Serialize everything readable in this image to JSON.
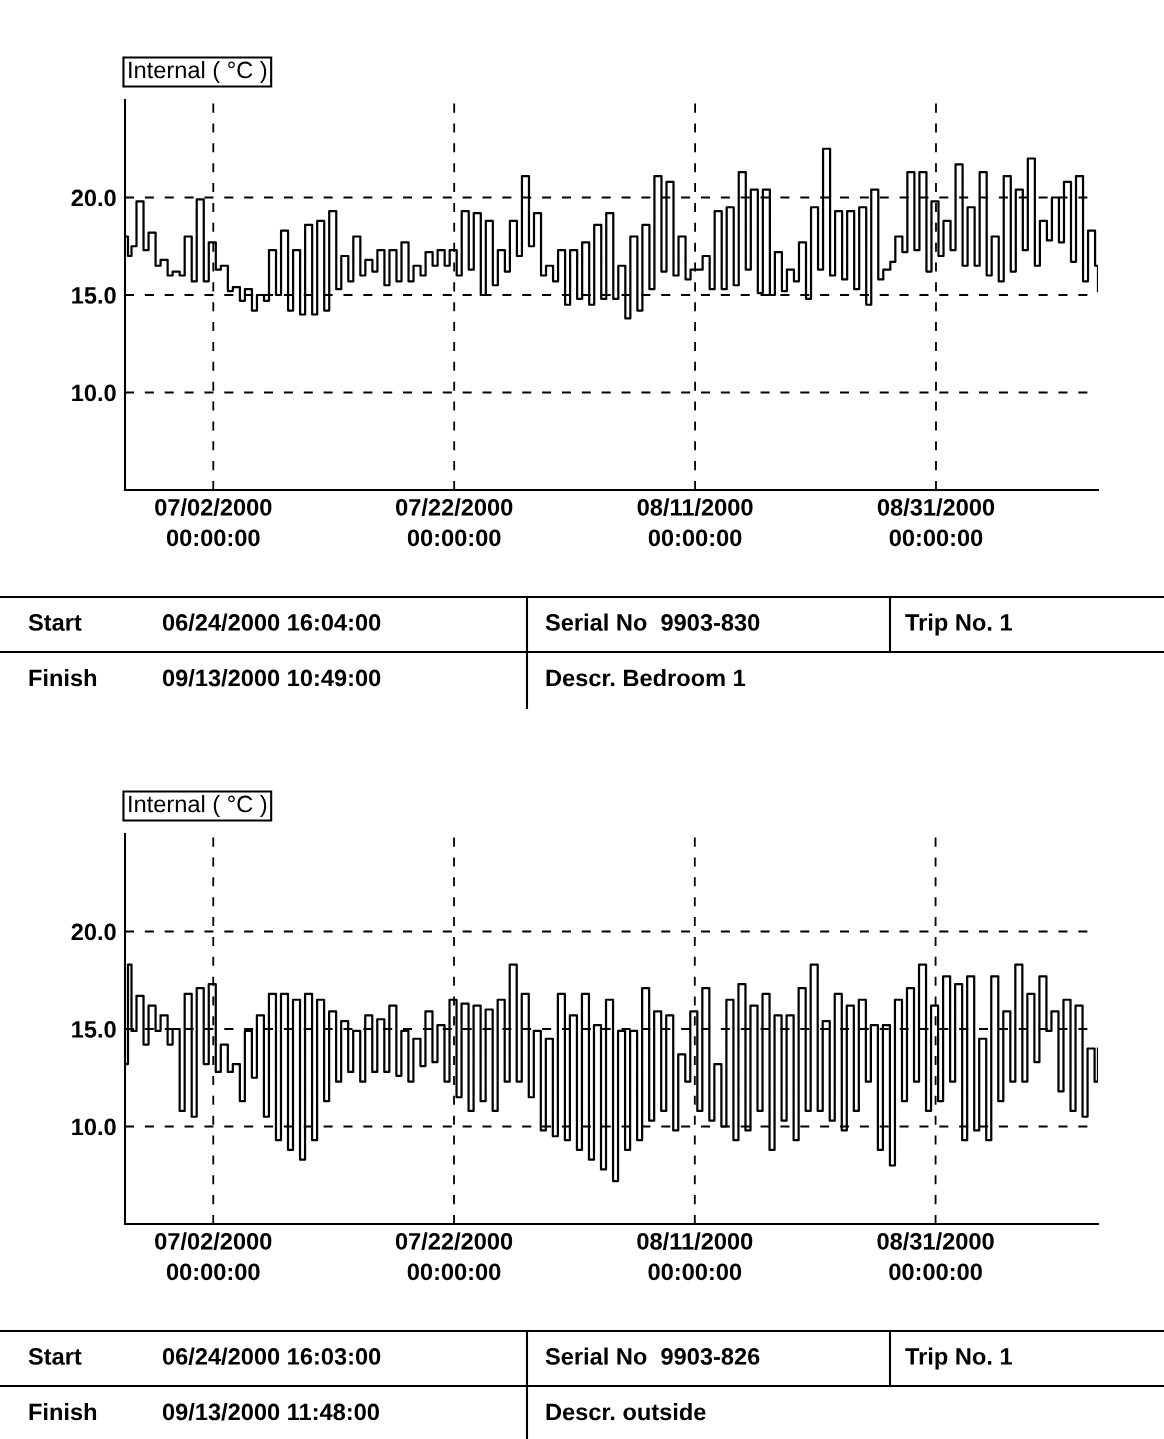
{
  "chart_data": [
    {
      "type": "step",
      "ylabel": "Internal ( °C )",
      "ylim": [
        5,
        25
      ],
      "yticks": [
        {
          "value": 10,
          "label": "10.0"
        },
        {
          "value": 15,
          "label": "15.0"
        },
        {
          "value": 20,
          "label": "20.0"
        }
      ],
      "xlim": [
        "2000-06-24T16:04",
        "2000-09-13T10:49"
      ],
      "xticks": [
        {
          "value": "2000-07-02",
          "label": "07/02/2000\n00:00:00"
        },
        {
          "value": "2000-07-22",
          "label": "07/22/2000\n00:00:00"
        },
        {
          "value": "2000-08-11",
          "label": "08/11/2000\n00:00:00"
        },
        {
          "value": "2000-08-31",
          "label": "08/31/2000\n00:00:00"
        }
      ],
      "grid": true,
      "line_style": "solid",
      "marker": "none",
      "x": [
        "2000-06-24T16:04",
        "2000-06-24T22:00",
        "2000-06-25T05:00",
        "2000-06-25T15:00",
        "2000-06-26T05:00",
        "2000-06-26T15:00",
        "2000-06-27T05:00",
        "2000-06-27T15:00",
        "2000-06-28T05:00",
        "2000-06-28T15:00",
        "2000-06-29T05:00",
        "2000-06-29T15:00",
        "2000-06-30T05:00",
        "2000-06-30T15:00",
        "2000-07-01T05:00",
        "2000-07-01T15:00",
        "2000-07-02T05:00",
        "2000-07-02T15:00",
        "2000-07-03T05:00",
        "2000-07-03T15:00",
        "2000-07-04T05:00",
        "2000-07-04T15:00",
        "2000-07-05T05:00",
        "2000-07-05T15:00",
        "2000-07-06T05:00",
        "2000-07-06T15:00",
        "2000-07-07T05:00",
        "2000-07-07T15:00",
        "2000-07-08T05:00",
        "2000-07-08T15:00",
        "2000-07-09T05:00",
        "2000-07-09T15:00",
        "2000-07-10T05:00",
        "2000-07-10T15:00",
        "2000-07-11T05:00",
        "2000-07-11T15:00",
        "2000-07-12T05:00",
        "2000-07-12T15:00",
        "2000-07-13T05:00",
        "2000-07-13T15:00",
        "2000-07-14T05:00",
        "2000-07-14T15:00",
        "2000-07-15T05:00",
        "2000-07-15T15:00",
        "2000-07-16T05:00",
        "2000-07-16T15:00",
        "2000-07-17T05:00",
        "2000-07-17T15:00",
        "2000-07-18T05:00",
        "2000-07-18T15:00",
        "2000-07-19T05:00",
        "2000-07-19T15:00",
        "2000-07-20T05:00",
        "2000-07-20T15:00",
        "2000-07-21T05:00",
        "2000-07-21T15:00",
        "2000-07-22T05:00",
        "2000-07-22T15:00",
        "2000-07-23T05:00",
        "2000-07-23T15:00",
        "2000-07-24T05:00",
        "2000-07-24T15:00",
        "2000-07-25T05:00",
        "2000-07-25T15:00",
        "2000-07-26T05:00",
        "2000-07-26T15:00",
        "2000-07-27T05:00",
        "2000-07-27T15:00",
        "2000-07-28T05:00",
        "2000-07-28T15:00",
        "2000-07-29T05:00",
        "2000-07-29T15:00",
        "2000-07-30T05:00",
        "2000-07-30T15:00",
        "2000-07-31T05:00",
        "2000-07-31T15:00",
        "2000-08-01T05:00",
        "2000-08-01T15:00",
        "2000-08-02T05:00",
        "2000-08-02T15:00",
        "2000-08-03T05:00",
        "2000-08-03T15:00",
        "2000-08-04T05:00",
        "2000-08-04T15:00",
        "2000-08-05T05:00",
        "2000-08-05T15:00",
        "2000-08-06T05:00",
        "2000-08-06T15:00",
        "2000-08-07T05:00",
        "2000-08-07T15:00",
        "2000-08-08T05:00",
        "2000-08-08T15:00",
        "2000-08-09T05:00",
        "2000-08-09T15:00",
        "2000-08-10T05:00",
        "2000-08-10T15:00",
        "2000-08-11T05:00",
        "2000-08-11T15:00",
        "2000-08-12T05:00",
        "2000-08-12T15:00",
        "2000-08-13T05:00",
        "2000-08-13T15:00",
        "2000-08-14T05:00",
        "2000-08-14T15:00",
        "2000-08-15T05:00",
        "2000-08-15T15:00",
        "2000-08-16T05:00",
        "2000-08-16T15:00",
        "2000-08-17T05:00",
        "2000-08-17T15:00",
        "2000-08-18T05:00",
        "2000-08-18T15:00",
        "2000-08-19T05:00",
        "2000-08-19T15:00",
        "2000-08-20T05:00",
        "2000-08-20T15:00",
        "2000-08-21T05:00",
        "2000-08-21T15:00",
        "2000-08-22T05:00",
        "2000-08-22T15:00",
        "2000-08-23T05:00",
        "2000-08-23T15:00",
        "2000-08-24T05:00",
        "2000-08-24T15:00",
        "2000-08-25T05:00",
        "2000-08-25T15:00",
        "2000-08-26T05:00",
        "2000-08-26T15:00",
        "2000-08-27T05:00",
        "2000-08-27T15:00",
        "2000-08-28T05:00",
        "2000-08-28T15:00",
        "2000-08-29T05:00",
        "2000-08-29T15:00",
        "2000-08-30T05:00",
        "2000-08-30T15:00",
        "2000-08-31T05:00",
        "2000-08-31T15:00",
        "2000-09-01T05:00",
        "2000-09-01T15:00",
        "2000-09-02T05:00",
        "2000-09-02T15:00",
        "2000-09-03T05:00",
        "2000-09-03T15:00",
        "2000-09-04T05:00",
        "2000-09-04T15:00",
        "2000-09-05T05:00",
        "2000-09-05T15:00",
        "2000-09-06T05:00",
        "2000-09-06T15:00",
        "2000-09-07T05:00",
        "2000-09-07T15:00",
        "2000-09-08T05:00",
        "2000-09-08T15:00",
        "2000-09-09T05:00",
        "2000-09-09T15:00",
        "2000-09-10T05:00",
        "2000-09-10T15:00",
        "2000-09-11T05:00",
        "2000-09-11T15:00",
        "2000-09-12T05:00",
        "2000-09-12T15:00",
        "2000-09-13T05:00",
        "2000-09-13T10:49"
      ],
      "series": [
        {
          "color": "#000000",
          "values": [
            18.0,
            17.0,
            17.5,
            19.8,
            17.3,
            18.2,
            16.5,
            16.8,
            16.0,
            16.2,
            16.0,
            18.0,
            15.7,
            19.9,
            15.7,
            17.7,
            16.3,
            16.5,
            15.2,
            15.4,
            14.7,
            15.3,
            14.2,
            15.0,
            14.7,
            17.3,
            15.0,
            18.3,
            14.2,
            17.3,
            14.0,
            18.6,
            14.0,
            18.8,
            14.2,
            19.3,
            15.3,
            17.0,
            15.7,
            18.0,
            16.0,
            16.8,
            16.2,
            17.3,
            15.5,
            17.3,
            15.7,
            17.7,
            15.7,
            16.5,
            16.0,
            17.2,
            16.5,
            17.3,
            16.5,
            17.3,
            16.0,
            19.3,
            16.3,
            19.2,
            15.0,
            18.8,
            15.5,
            17.3,
            16.2,
            18.8,
            17.0,
            21.1,
            17.5,
            19.2,
            16.0,
            16.5,
            15.7,
            17.3,
            14.5,
            17.3,
            14.8,
            17.7,
            14.5,
            18.6,
            14.8,
            19.2,
            14.8,
            16.5,
            13.8,
            18.0,
            14.2,
            18.6,
            15.3,
            21.1,
            16.2,
            20.8,
            16.0,
            18.0,
            15.8,
            16.3,
            16.3,
            17.0,
            15.3,
            19.3,
            15.3,
            19.5,
            15.5,
            21.3,
            16.3,
            20.4,
            15.1,
            20.4,
            15.0,
            17.2,
            15.2,
            16.3,
            15.7,
            17.7,
            14.8,
            19.5,
            16.3,
            22.5,
            16.0,
            19.3,
            15.8,
            19.3,
            15.3,
            19.5,
            14.5,
            20.4,
            15.8,
            16.3,
            16.7,
            18.0,
            17.2,
            21.3,
            17.3,
            21.3,
            16.2,
            19.8,
            17.0,
            18.8,
            17.3,
            21.7,
            16.5,
            19.5,
            16.5,
            21.3,
            16.0,
            18.0,
            15.7,
            21.1,
            16.2,
            20.4,
            17.3,
            22.0,
            16.5,
            18.8,
            17.8,
            20.0,
            17.7,
            20.8,
            16.7,
            21.1,
            15.7,
            18.3,
            16.5,
            15.2
          ]
        }
      ],
      "annotations": [
        "Start",
        "06/24/2000 16:04:00",
        "Serial No  9903-830",
        "Trip No. 1",
        "Finish",
        "09/13/2000 10:49:00",
        "Descr. Bedroom 1"
      ]
    },
    {
      "type": "step",
      "ylabel": "Internal ( °C )",
      "ylim": [
        5,
        25
      ],
      "yticks": [
        {
          "value": 10,
          "label": "10.0"
        },
        {
          "value": 15,
          "label": "15.0"
        },
        {
          "value": 20,
          "label": "20.0"
        }
      ],
      "xlim": [
        "2000-06-24T16:03",
        "2000-09-13T11:48"
      ],
      "xticks": [
        {
          "value": "2000-07-02",
          "label": "07/02/2000\n00:00:00"
        },
        {
          "value": "2000-07-22",
          "label": "07/22/2000\n00:00:00"
        },
        {
          "value": "2000-08-11",
          "label": "08/11/2000\n00:00:00"
        },
        {
          "value": "2000-08-31",
          "label": "08/31/2000\n00:00:00"
        }
      ],
      "grid": true,
      "line_style": "solid",
      "marker": "none",
      "x": [
        "2000-06-24T16:03",
        "2000-06-24T22:00",
        "2000-06-25T05:00",
        "2000-06-25T15:00",
        "2000-06-26T05:00",
        "2000-06-26T15:00",
        "2000-06-27T05:00",
        "2000-06-27T15:00",
        "2000-06-28T05:00",
        "2000-06-28T15:00",
        "2000-06-29T05:00",
        "2000-06-29T15:00",
        "2000-06-30T05:00",
        "2000-06-30T15:00",
        "2000-07-01T05:00",
        "2000-07-01T15:00",
        "2000-07-02T05:00",
        "2000-07-02T15:00",
        "2000-07-03T05:00",
        "2000-07-03T15:00",
        "2000-07-04T05:00",
        "2000-07-04T15:00",
        "2000-07-05T05:00",
        "2000-07-05T15:00",
        "2000-07-06T05:00",
        "2000-07-06T15:00",
        "2000-07-07T05:00",
        "2000-07-07T15:00",
        "2000-07-08T05:00",
        "2000-07-08T15:00",
        "2000-07-09T05:00",
        "2000-07-09T15:00",
        "2000-07-10T05:00",
        "2000-07-10T15:00",
        "2000-07-11T05:00",
        "2000-07-11T15:00",
        "2000-07-12T05:00",
        "2000-07-12T15:00",
        "2000-07-13T05:00",
        "2000-07-13T15:00",
        "2000-07-14T05:00",
        "2000-07-14T15:00",
        "2000-07-15T05:00",
        "2000-07-15T15:00",
        "2000-07-16T05:00",
        "2000-07-16T15:00",
        "2000-07-17T05:00",
        "2000-07-17T15:00",
        "2000-07-18T05:00",
        "2000-07-18T15:00",
        "2000-07-19T05:00",
        "2000-07-19T15:00",
        "2000-07-20T05:00",
        "2000-07-20T15:00",
        "2000-07-21T05:00",
        "2000-07-21T15:00",
        "2000-07-22T05:00",
        "2000-07-22T15:00",
        "2000-07-23T05:00",
        "2000-07-23T15:00",
        "2000-07-24T05:00",
        "2000-07-24T15:00",
        "2000-07-25T05:00",
        "2000-07-25T15:00",
        "2000-07-26T05:00",
        "2000-07-26T15:00",
        "2000-07-27T05:00",
        "2000-07-27T15:00",
        "2000-07-28T05:00",
        "2000-07-28T15:00",
        "2000-07-29T05:00",
        "2000-07-29T15:00",
        "2000-07-30T05:00",
        "2000-07-30T15:00",
        "2000-07-31T05:00",
        "2000-07-31T15:00",
        "2000-08-01T05:00",
        "2000-08-01T15:00",
        "2000-08-02T05:00",
        "2000-08-02T15:00",
        "2000-08-03T05:00",
        "2000-08-03T15:00",
        "2000-08-04T05:00",
        "2000-08-04T15:00",
        "2000-08-05T05:00",
        "2000-08-05T15:00",
        "2000-08-06T05:00",
        "2000-08-06T15:00",
        "2000-08-07T05:00",
        "2000-08-07T15:00",
        "2000-08-08T05:00",
        "2000-08-08T15:00",
        "2000-08-09T05:00",
        "2000-08-09T15:00",
        "2000-08-10T05:00",
        "2000-08-10T15:00",
        "2000-08-11T05:00",
        "2000-08-11T15:00",
        "2000-08-12T05:00",
        "2000-08-12T15:00",
        "2000-08-13T05:00",
        "2000-08-13T15:00",
        "2000-08-14T05:00",
        "2000-08-14T15:00",
        "2000-08-15T05:00",
        "2000-08-15T15:00",
        "2000-08-16T05:00",
        "2000-08-16T15:00",
        "2000-08-17T05:00",
        "2000-08-17T15:00",
        "2000-08-18T05:00",
        "2000-08-18T15:00",
        "2000-08-19T05:00",
        "2000-08-19T15:00",
        "2000-08-20T05:00",
        "2000-08-20T15:00",
        "2000-08-21T05:00",
        "2000-08-21T15:00",
        "2000-08-22T05:00",
        "2000-08-22T15:00",
        "2000-08-23T05:00",
        "2000-08-23T15:00",
        "2000-08-24T05:00",
        "2000-08-24T15:00",
        "2000-08-25T05:00",
        "2000-08-25T15:00",
        "2000-08-26T05:00",
        "2000-08-26T15:00",
        "2000-08-27T05:00",
        "2000-08-27T15:00",
        "2000-08-28T05:00",
        "2000-08-28T15:00",
        "2000-08-29T05:00",
        "2000-08-29T15:00",
        "2000-08-30T05:00",
        "2000-08-30T15:00",
        "2000-08-31T05:00",
        "2000-08-31T15:00",
        "2000-09-01T05:00",
        "2000-09-01T15:00",
        "2000-09-02T05:00",
        "2000-09-02T15:00",
        "2000-09-03T05:00",
        "2000-09-03T15:00",
        "2000-09-04T05:00",
        "2000-09-04T15:00",
        "2000-09-05T05:00",
        "2000-09-05T15:00",
        "2000-09-06T05:00",
        "2000-09-06T15:00",
        "2000-09-07T05:00",
        "2000-09-07T15:00",
        "2000-09-08T05:00",
        "2000-09-08T15:00",
        "2000-09-09T05:00",
        "2000-09-09T15:00",
        "2000-09-10T05:00",
        "2000-09-10T15:00",
        "2000-09-11T05:00",
        "2000-09-11T15:00",
        "2000-09-12T05:00",
        "2000-09-12T15:00",
        "2000-09-13T05:00",
        "2000-09-13T11:48"
      ],
      "series": [
        {
          "color": "#000000",
          "values": [
            13.2,
            18.3,
            14.9,
            16.7,
            14.2,
            16.2,
            14.9,
            15.7,
            14.2,
            15.0,
            10.8,
            16.8,
            10.5,
            17.1,
            13.2,
            17.3,
            12.8,
            14.2,
            12.8,
            13.2,
            11.3,
            14.9,
            12.5,
            15.7,
            10.5,
            16.8,
            9.3,
            16.8,
            8.8,
            16.5,
            8.3,
            16.8,
            9.3,
            16.5,
            11.3,
            15.9,
            12.3,
            15.4,
            12.8,
            14.9,
            12.3,
            15.7,
            12.8,
            15.5,
            12.8,
            16.2,
            12.6,
            14.9,
            12.3,
            14.5,
            13.1,
            15.9,
            13.3,
            15.2,
            12.3,
            16.5,
            11.5,
            16.3,
            10.8,
            16.2,
            11.3,
            16.0,
            10.8,
            16.5,
            12.3,
            18.3,
            12.3,
            16.8,
            11.5,
            14.9,
            9.8,
            14.5,
            9.5,
            16.8,
            9.3,
            15.7,
            8.8,
            16.8,
            8.3,
            15.2,
            7.8,
            16.5,
            7.2,
            14.9,
            8.8,
            14.9,
            9.3,
            17.1,
            10.3,
            15.9,
            10.8,
            15.7,
            9.8,
            13.7,
            12.3,
            15.9,
            10.8,
            17.1,
            10.3,
            13.2,
            10.0,
            16.5,
            9.3,
            17.3,
            9.8,
            16.2,
            10.8,
            16.8,
            8.8,
            15.7,
            10.3,
            15.7,
            9.3,
            17.1,
            10.8,
            18.3,
            10.8,
            15.4,
            10.3,
            16.8,
            9.8,
            16.2,
            10.8,
            16.5,
            12.3,
            15.2,
            8.8,
            15.2,
            8.0,
            16.5,
            11.3,
            17.1,
            12.3,
            18.3,
            10.8,
            16.2,
            11.3,
            17.7,
            12.3,
            17.3,
            9.3,
            17.7,
            9.8,
            14.5,
            9.3,
            17.7,
            11.3,
            15.9,
            12.3,
            18.3,
            12.3,
            16.8,
            13.3,
            17.7,
            14.9,
            15.9,
            11.8,
            16.5,
            10.8,
            16.2,
            10.5,
            14.0,
            12.3,
            14.0
          ]
        }
      ],
      "annotations": [
        "Start",
        "06/24/2000 16:03:00",
        "Serial No  9903-826",
        "Trip No. 1",
        "Finish",
        "09/13/2000 11:48:00",
        "Descr. outside"
      ]
    }
  ]
}
